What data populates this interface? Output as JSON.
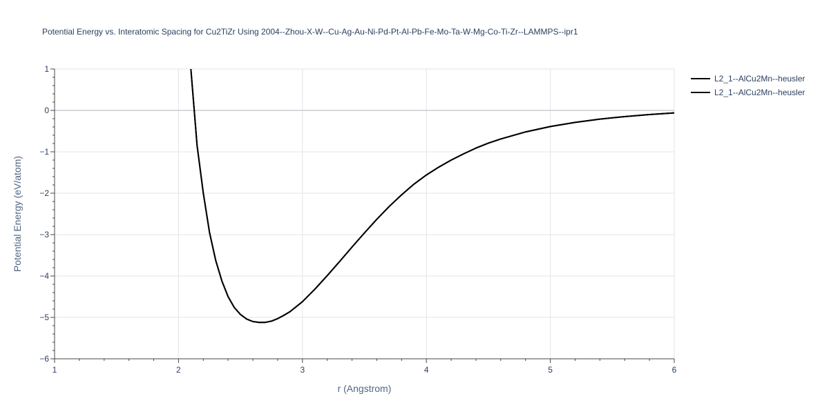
{
  "chart_data": {
    "type": "line",
    "title": "Potential Energy vs. Interatomic Spacing for Cu2TiZr Using 2004--Zhou-X-W--Cu-Ag-Au-Ni-Pd-Pt-Al-Pb-Fe-Mo-Ta-W-Mg-Co-Ti-Zr--LAMMPS--ipr1",
    "xlabel": "r (Angstrom)",
    "ylabel": "Potential Energy (eV/atom)",
    "xlim": [
      1,
      6
    ],
    "ylim": [
      -6,
      1
    ],
    "x_ticks": [
      1,
      2,
      3,
      4,
      5,
      6
    ],
    "x_tick_labels": [
      "1",
      "2",
      "3",
      "4",
      "5",
      "6"
    ],
    "y_ticks": [
      1,
      0,
      -1,
      -2,
      -3,
      -4,
      -5,
      -6
    ],
    "y_tick_labels": [
      "1",
      "0",
      "−1",
      "−2",
      "−3",
      "−4",
      "−5",
      "−6"
    ],
    "grid": true,
    "legend_position": "top-right",
    "series": [
      {
        "name": "L2_1--AlCu2Mn--heusler",
        "color": "#000000",
        "x": [
          2.1,
          2.15,
          2.2,
          2.25,
          2.3,
          2.35,
          2.4,
          2.45,
          2.5,
          2.55,
          2.6,
          2.65,
          2.7,
          2.75,
          2.8,
          2.85,
          2.9,
          3.0,
          3.1,
          3.2,
          3.3,
          3.4,
          3.5,
          3.6,
          3.7,
          3.8,
          3.9,
          4.0,
          4.1,
          4.2,
          4.3,
          4.4,
          4.5,
          4.6,
          4.8,
          5.0,
          5.2,
          5.4,
          5.6,
          5.8,
          6.0
        ],
        "y": [
          1.0,
          -0.85,
          -2.0,
          -2.95,
          -3.62,
          -4.12,
          -4.5,
          -4.76,
          -4.93,
          -5.04,
          -5.1,
          -5.12,
          -5.12,
          -5.09,
          -5.03,
          -4.95,
          -4.86,
          -4.62,
          -4.32,
          -3.99,
          -3.65,
          -3.3,
          -2.96,
          -2.63,
          -2.32,
          -2.04,
          -1.78,
          -1.56,
          -1.37,
          -1.2,
          -1.05,
          -0.91,
          -0.79,
          -0.69,
          -0.52,
          -0.39,
          -0.29,
          -0.21,
          -0.15,
          -0.1,
          -0.06
        ]
      },
      {
        "name": "L2_1--AlCu2Mn--heusler",
        "color": "#000000",
        "x": [
          2.1,
          2.15,
          2.2,
          2.25,
          2.3,
          2.35,
          2.4,
          2.45,
          2.5,
          2.55,
          2.6,
          2.65,
          2.7,
          2.75,
          2.8,
          2.85,
          2.9,
          3.0,
          3.1,
          3.2,
          3.3,
          3.4,
          3.5,
          3.6,
          3.7,
          3.8,
          3.9,
          4.0,
          4.1,
          4.2,
          4.3,
          4.4,
          4.5,
          4.6,
          4.8,
          5.0,
          5.2,
          5.4,
          5.6,
          5.8,
          6.0
        ],
        "y": [
          1.0,
          -0.85,
          -2.0,
          -2.95,
          -3.62,
          -4.12,
          -4.5,
          -4.76,
          -4.93,
          -5.04,
          -5.1,
          -5.12,
          -5.12,
          -5.09,
          -5.03,
          -4.95,
          -4.86,
          -4.62,
          -4.32,
          -3.99,
          -3.65,
          -3.3,
          -2.96,
          -2.63,
          -2.32,
          -2.04,
          -1.78,
          -1.56,
          -1.37,
          -1.2,
          -1.05,
          -0.91,
          -0.79,
          -0.69,
          -0.52,
          -0.39,
          -0.29,
          -0.21,
          -0.15,
          -0.1,
          -0.06
        ]
      }
    ]
  }
}
